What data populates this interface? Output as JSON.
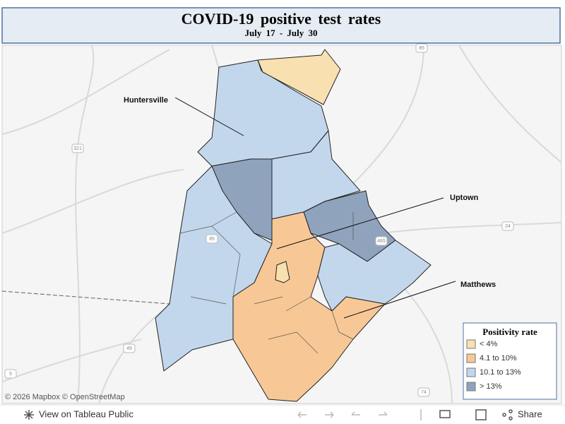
{
  "header": {
    "title": "COVID-19 positive test rates",
    "subtitle": "July 17 - July 30"
  },
  "annotations": [
    "Huntersville",
    "Uptown",
    "Matthews"
  ],
  "legend": {
    "title": "Positivity rate",
    "items": [
      {
        "label": "< 4%",
        "color": "#f9e0b0"
      },
      {
        "label": "4.1 to 10%",
        "color": "#f7c896"
      },
      {
        "label": "10.1 to 13%",
        "color": "#c3d7ec"
      },
      {
        "label": "> 13%",
        "color": "#8fa3bd"
      }
    ]
  },
  "road_shields": [
    "321",
    "85",
    "24",
    "485",
    "49",
    "74",
    "5",
    "85"
  ],
  "attribution": "© 2026 Mapbox  © OpenStreetMap",
  "toolbar": {
    "view": "View on Tableau Public",
    "share": "Share"
  }
}
